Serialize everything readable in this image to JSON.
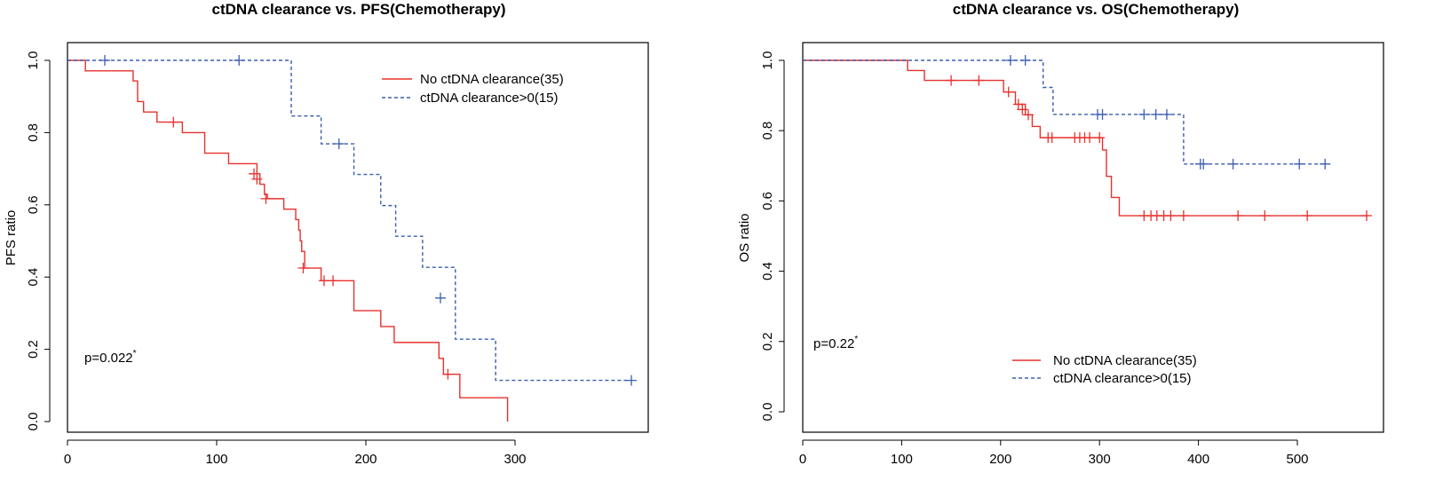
{
  "chart_data": [
    {
      "type": "line",
      "title": "ctDNA clearance vs. PFS(Chemotherapy)",
      "xlabel": "",
      "ylabel": "PFS ratio",
      "xlim": [
        0,
        380
      ],
      "ylim": [
        0,
        1.0
      ],
      "x_ticks": [
        "0",
        "100",
        "200",
        "300"
      ],
      "y_ticks": [
        "0.0",
        "0.2",
        "0.4",
        "0.6",
        "0.8",
        "1.0"
      ],
      "annotation": "p=0.022",
      "annotation_sup": "*",
      "legend_position": "top-right",
      "series": [
        {
          "name": "No ctDNA clearance(35)",
          "color": "#e8312d",
          "style": "solid",
          "x": [
            0,
            12,
            44,
            47,
            51,
            60,
            77,
            92,
            108,
            127,
            129,
            132,
            134,
            145,
            153,
            155,
            156,
            157,
            159,
            170,
            192,
            210,
            219,
            249,
            252,
            263,
            295
          ],
          "y": [
            1.0,
            0.971,
            0.943,
            0.886,
            0.857,
            0.829,
            0.8,
            0.743,
            0.714,
            0.686,
            0.657,
            0.629,
            0.617,
            0.588,
            0.559,
            0.53,
            0.5,
            0.471,
            0.425,
            0.39,
            0.307,
            0.263,
            0.219,
            0.175,
            0.131,
            0.066,
            0.0
          ],
          "censor_x": [
            71,
            125,
            127,
            133,
            158,
            172,
            178,
            255
          ],
          "censor_y": [
            0.829,
            0.686,
            0.671,
            0.617,
            0.425,
            0.39,
            0.39,
            0.131
          ]
        },
        {
          "name": "ctDNA clearance>0(15)",
          "color": "#3a5fad",
          "style": "dashed",
          "x": [
            0,
            150,
            170,
            192,
            210,
            220,
            238,
            260,
            287,
            378
          ],
          "y": [
            1.0,
            0.846,
            0.769,
            0.684,
            0.598,
            0.513,
            0.427,
            0.228,
            0.114,
            0.114
          ],
          "censor_x": [
            25,
            115,
            182,
            250,
            378
          ],
          "censor_y": [
            1.0,
            1.0,
            0.769,
            0.342,
            0.114
          ]
        }
      ]
    },
    {
      "type": "line",
      "title": "ctDNA clearance vs. OS(Chemotherapy)",
      "xlabel": "",
      "ylabel": "OS ratio",
      "xlim": [
        0,
        575
      ],
      "ylim": [
        0,
        1.0
      ],
      "x_ticks": [
        "0",
        "100",
        "200",
        "300",
        "400",
        "500"
      ],
      "y_ticks": [
        "0.0",
        "0.2",
        "0.4",
        "0.6",
        "0.8",
        "1.0"
      ],
      "annotation": "p=0.22",
      "annotation_sup": "*",
      "legend_position": "bottom-center",
      "series": [
        {
          "name": "No ctDNA clearance(35)",
          "color": "#e8312d",
          "style": "solid",
          "x": [
            0,
            106,
            123,
            203,
            215,
            225,
            232,
            240,
            303,
            307,
            312,
            320,
            572
          ],
          "y": [
            1.0,
            0.971,
            0.943,
            0.91,
            0.875,
            0.845,
            0.812,
            0.78,
            0.745,
            0.67,
            0.61,
            0.558,
            0.558
          ],
          "censor_x": [
            150,
            178,
            208,
            218,
            222,
            228,
            248,
            252,
            275,
            280,
            285,
            290,
            300,
            345,
            352,
            358,
            365,
            372,
            385,
            440,
            467,
            510,
            570
          ],
          "censor_y": [
            0.943,
            0.943,
            0.91,
            0.875,
            0.86,
            0.845,
            0.78,
            0.78,
            0.78,
            0.78,
            0.78,
            0.78,
            0.78,
            0.558,
            0.558,
            0.558,
            0.558,
            0.558,
            0.558,
            0.558,
            0.558,
            0.558,
            0.558
          ]
        },
        {
          "name": "ctDNA clearance>0(15)",
          "color": "#3a5fad",
          "style": "dashed",
          "x": [
            0,
            243,
            253,
            385,
            528
          ],
          "y": [
            1.0,
            0.923,
            0.846,
            0.705,
            0.705
          ],
          "censor_x": [
            210,
            225,
            298,
            303,
            345,
            357,
            368,
            402,
            405,
            435,
            502,
            528
          ],
          "censor_y": [
            1.0,
            1.0,
            0.846,
            0.846,
            0.846,
            0.846,
            0.846,
            0.705,
            0.705,
            0.705,
            0.705,
            0.705
          ]
        }
      ]
    }
  ]
}
